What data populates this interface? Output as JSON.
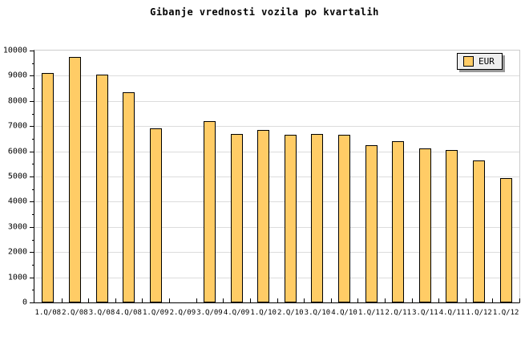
{
  "title": "Gibanje vrednosti vozila po kvartalih",
  "legend": {
    "items": [
      {
        "label": "EUR",
        "color": "#FFCC66"
      }
    ]
  },
  "colors": {
    "background": "#FFFFFF",
    "bar_fill": "#FFCC66",
    "bar_border": "#000000",
    "grid": "#DCDCDC",
    "axis": "#000000",
    "frame_light": "#CCCCCC",
    "legend_bg": "#EEEEEE",
    "legend_shadow": "#999999"
  },
  "chart_data": {
    "type": "bar",
    "title": "Gibanje vrednosti vozila po kvartalih",
    "categories": [
      "1.Q/08",
      "2.Q/08",
      "3.Q/08",
      "4.Q/08",
      "1.Q/09",
      "2.Q/09",
      "3.Q/09",
      "4.Q/09",
      "1.Q/10",
      "2.Q/10",
      "3.Q/10",
      "4.Q/10",
      "1.Q/11",
      "2.Q/11",
      "3.Q/11",
      "4.Q/11",
      "1.Q/12",
      "1.Q/12"
    ],
    "series": [
      {
        "name": "EUR",
        "values": [
          9100,
          9750,
          9050,
          8350,
          6900,
          null,
          7200,
          6700,
          6850,
          6650,
          6700,
          6650,
          6250,
          6400,
          6100,
          6050,
          5650,
          4950
        ]
      }
    ],
    "xlabel": "",
    "ylabel": "",
    "ylim": [
      0,
      10000
    ],
    "ytick_step": 1000,
    "ytick_minor_step": 500,
    "grid": true,
    "legend_position": "top-right"
  }
}
